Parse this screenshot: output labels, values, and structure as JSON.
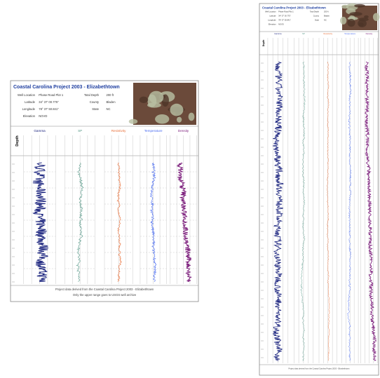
{
  "documents": [
    {
      "title": "Coastal Carolina Project 2003 - Elizabethtown",
      "fields": [
        {
          "label": "Well Location",
          "value": "Phase Road Plot 1"
        },
        {
          "label": "Latitude",
          "value": "34° 37' 00.775\""
        },
        {
          "label": "Longitude",
          "value": "78° 37' 50.841\""
        },
        {
          "label": "Elevation",
          "value": "NGVD"
        }
      ],
      "fields2": [
        {
          "label": "Total Depth",
          "value": "200 ft"
        },
        {
          "label": "County",
          "value": "Bladen"
        },
        {
          "label": "State",
          "value": "NC"
        }
      ],
      "depth_label": "Depth",
      "tracks": [
        "Gamma",
        "SP",
        "Resistivity",
        "Temperature",
        "Density"
      ],
      "footer": [
        "Project data derived from the Coastal Carolina Project 2003 - Elizabethtown",
        "Only the upper range goes to USGS well archive"
      ]
    },
    {
      "title": "Coastal Carolina Project 2003 - Elizabethtown",
      "fields": [
        {
          "label": "Well Location",
          "value": "Phase Road Plot 1"
        },
        {
          "label": "Latitude",
          "value": "34° 37' 00.775\""
        },
        {
          "label": "Longitude",
          "value": "78° 37' 50.841\""
        },
        {
          "label": "Elevation",
          "value": "NGVD"
        }
      ],
      "fields2": [
        {
          "label": "Total Depth",
          "value": "200 ft"
        },
        {
          "label": "County",
          "value": "Bladen"
        },
        {
          "label": "State",
          "value": "NC"
        }
      ],
      "depth_label": "Depth",
      "tracks": [
        "Gamma",
        "SP",
        "Resistivity",
        "Temperature",
        "Density"
      ],
      "footer": [
        "Project data derived from the Coastal Carolina Project 2003 - Elizabethtown"
      ]
    }
  ]
}
